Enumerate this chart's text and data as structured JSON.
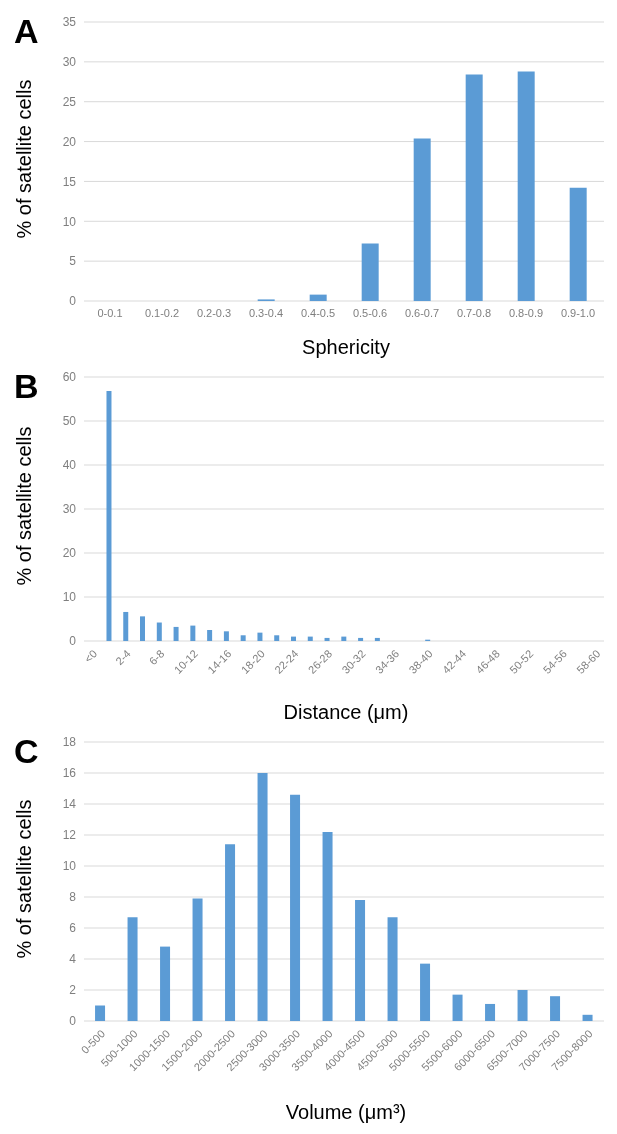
{
  "chart_data": [
    {
      "type": "bar",
      "title": "A",
      "xlabel": "Sphericity",
      "ylabel": "% of satellite cells",
      "categories": [
        "0-0.1",
        "0.1-0.2",
        "0.2-0.3",
        "0.3-0.4",
        "0.4-0.5",
        "0.5-0.6",
        "0.6-0.7",
        "0.7-0.8",
        "0.8-0.9",
        "0.9-1.0"
      ],
      "values": [
        0,
        0,
        0,
        0.2,
        0.8,
        7.2,
        20.4,
        28.4,
        28.8,
        14.2
      ],
      "color": "#5b9bd5",
      "ylim": [
        0,
        35
      ],
      "yticks": [
        0,
        5,
        10,
        15,
        20,
        25,
        30,
        35
      ],
      "grid": "y"
    },
    {
      "type": "bar",
      "title": "B",
      "xlabel": "Distance (μm)",
      "ylabel": "% of satellite cells",
      "categories": [
        "<0",
        null,
        "2-4",
        null,
        "6-8",
        null,
        "10-12",
        null,
        "14-16",
        null,
        "18-20",
        null,
        "22-24",
        null,
        "26-28",
        null,
        "30-32",
        null,
        "34-36",
        null,
        "38-40",
        null,
        "42-44",
        null,
        "46-48",
        null,
        "50-52",
        null,
        "54-56",
        null,
        "58-60"
      ],
      "values": [
        0,
        56.8,
        6.6,
        5.6,
        4.2,
        3.2,
        3.5,
        2.5,
        2.2,
        1.3,
        1.9,
        1.3,
        1.0,
        1.0,
        0.7,
        1.0,
        0.7,
        0.7,
        0,
        0,
        0.3,
        0,
        0,
        0,
        0,
        0,
        0,
        0,
        0,
        0,
        0
      ],
      "color": "#5b9bd5",
      "ylim": [
        0,
        60
      ],
      "yticks": [
        0,
        10,
        20,
        30,
        40,
        50,
        60
      ],
      "grid": "y"
    },
    {
      "type": "bar",
      "title": "C",
      "xlabel": "Volume (μm³)",
      "ylabel": "% of satellite cells",
      "categories": [
        "0-500",
        "500-1000",
        "1000-1500",
        "1500-2000",
        "2000-2500",
        "2500-3000",
        "3000-3500",
        "3500-4000",
        "4000-4500",
        "4500-5000",
        "5000-5500",
        "5500-6000",
        "6000-6500",
        "6500-7000",
        "7000-7500",
        "7500-8000"
      ],
      "values": [
        1.0,
        6.7,
        4.8,
        7.9,
        11.4,
        16.0,
        14.6,
        12.2,
        7.8,
        6.7,
        3.7,
        1.7,
        1.1,
        2.0,
        1.6,
        0.4
      ],
      "color": "#5b9bd5",
      "ylim": [
        0,
        18
      ],
      "yticks": [
        0,
        2,
        4,
        6,
        8,
        10,
        12,
        14,
        16,
        18
      ],
      "grid": "y"
    }
  ]
}
